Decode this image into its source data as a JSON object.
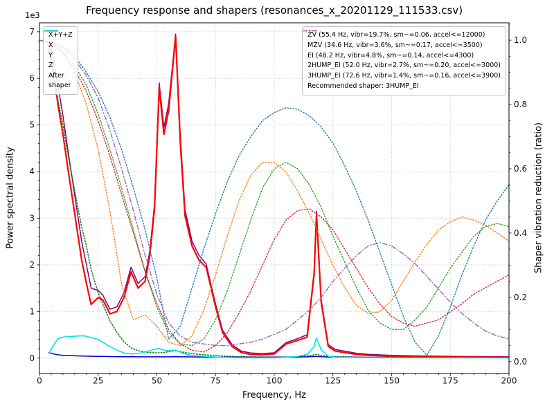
{
  "chart_data": {
    "type": "line",
    "title": "Frequency response and shapers (resonances_x_20201129_111533.csv)",
    "xlabel": "Frequency, Hz",
    "ylabel_left": "Power spectral density",
    "ylabel_right": "Shaper vibration reduction (ratio)",
    "grid": true,
    "legend_left_loc": "upper left",
    "legend_right_loc": "upper right",
    "legend_note": "Recommended shaper: 3HUMP_EI",
    "recommended_shaper": "3HUMP_EI",
    "x_axis": {
      "range": [
        0,
        200
      ],
      "major_ticks": [
        0,
        25,
        50,
        75,
        100,
        125,
        150,
        175,
        200
      ],
      "minor_step": 5
    },
    "left_axis": {
      "offset_text": "1e3",
      "range": [
        -330,
        7190
      ],
      "major_ticks": [
        0,
        1000,
        2000,
        3000,
        4000,
        5000,
        6000,
        7000
      ],
      "tick_labels": [
        "0",
        "1",
        "2",
        "3",
        "4",
        "5",
        "6",
        "7"
      ],
      "minor_step": 200
    },
    "right_axis": {
      "range": [
        -0.037,
        1.054
      ],
      "major_ticks": [
        0,
        0.2,
        0.4,
        0.6,
        0.8,
        1.0
      ],
      "tick_labels": [
        "0.0",
        "0.2",
        "0.4",
        "0.6",
        "0.8",
        "1.0"
      ],
      "minor_step": 0.05
    },
    "psd": {
      "x": [
        4,
        6,
        8,
        10,
        12,
        15,
        18,
        20,
        22,
        25,
        27,
        30,
        33,
        36,
        39,
        42,
        45,
        47,
        49,
        51,
        53,
        55,
        58,
        60,
        62,
        65,
        68,
        71,
        75,
        78,
        82,
        86,
        90,
        95,
        100,
        105,
        110,
        114,
        117,
        118,
        120,
        123,
        126,
        130,
        135,
        140,
        150,
        160,
        180,
        200
      ],
      "series": [
        {
          "key": "psd-xyz",
          "label": "X+Y+Z",
          "color": "#800080",
          "style": "solid",
          "width": 1.5,
          "values": [
            6950,
            6400,
            5800,
            5200,
            4500,
            3500,
            2500,
            2000,
            1500,
            1450,
            1350,
            1050,
            1100,
            1400,
            1950,
            1600,
            1750,
            2300,
            3300,
            5900,
            4950,
            5450,
            6950,
            4750,
            3180,
            2500,
            2200,
            2020,
            1160,
            600,
            290,
            150,
            110,
            95,
            115,
            330,
            420,
            500,
            1870,
            3150,
            1260,
            290,
            185,
            150,
            105,
            82,
            60,
            48,
            35,
            27
          ]
        },
        {
          "key": "psd-x",
          "label": "X",
          "color": "#ff0000",
          "style": "solid",
          "width": 2.2,
          "values": [
            6700,
            6100,
            5400,
            4800,
            4100,
            3100,
            2100,
            1600,
            1150,
            1300,
            1250,
            950,
            1000,
            1300,
            1850,
            1500,
            1650,
            2200,
            3200,
            5800,
            4800,
            5300,
            6900,
            4600,
            3050,
            2400,
            2100,
            1950,
            1100,
            550,
            250,
            120,
            80,
            70,
            90,
            300,
            380,
            450,
            1800,
            3080,
            1200,
            250,
            150,
            120,
            80,
            60,
            40,
            30,
            20,
            15
          ]
        },
        {
          "key": "psd-y",
          "label": "Y",
          "color": "#008000",
          "style": "dotted",
          "width": 1.5,
          "values": [
            6600,
            6100,
            5500,
            5000,
            4400,
            3600,
            2800,
            2400,
            1900,
            1400,
            1150,
            800,
            550,
            350,
            220,
            160,
            130,
            120,
            115,
            115,
            120,
            140,
            160,
            140,
            120,
            100,
            80,
            70,
            55,
            45,
            35,
            30,
            28,
            25,
            25,
            28,
            35,
            45,
            70,
            80,
            60,
            40,
            35,
            30,
            25,
            22,
            20,
            18,
            15,
            12
          ]
        },
        {
          "key": "psd-z",
          "label": "Z",
          "color": "#0000cd",
          "style": "solid",
          "width": 1.5,
          "values": [
            120,
            90,
            70,
            60,
            55,
            50,
            45,
            42,
            40,
            38,
            36,
            34,
            32,
            30,
            30,
            28,
            28,
            27,
            27,
            28,
            28,
            28,
            30,
            28,
            27,
            26,
            25,
            24,
            23,
            22,
            21,
            20,
            20,
            20,
            20,
            22,
            25,
            28,
            35,
            38,
            30,
            25,
            22,
            20,
            18,
            17,
            16,
            15,
            13,
            12
          ]
        },
        {
          "key": "psd-after-shaper",
          "label": "After\nshaper",
          "color": "#00e5e5",
          "style": "solid",
          "width": 1.6,
          "values": [
            100,
            280,
            420,
            450,
            460,
            470,
            480,
            470,
            440,
            400,
            340,
            250,
            170,
            110,
            90,
            100,
            130,
            160,
            190,
            210,
            170,
            160,
            170,
            130,
            90,
            60,
            45,
            38,
            25,
            18,
            12,
            8,
            6,
            6,
            8,
            20,
            40,
            80,
            250,
            430,
            180,
            40,
            20,
            15,
            12,
            10,
            8,
            7,
            6,
            5
          ]
        }
      ]
    },
    "shapers": {
      "x": [
        0,
        5,
        10,
        15,
        20,
        25,
        30,
        35,
        40,
        45,
        50,
        55,
        60,
        65,
        70,
        75,
        80,
        85,
        90,
        95,
        100,
        105,
        110,
        115,
        120,
        125,
        130,
        135,
        140,
        145,
        150,
        155,
        160,
        165,
        170,
        175,
        180,
        185,
        190,
        195,
        200
      ],
      "series": [
        {
          "key": "shaper-zv",
          "label": "ZV (55.4 Hz, vibr=19.7%, sm~=0.06, accel<=12000)",
          "color": "#1f77b4",
          "style": "dotted",
          "width": 1.4,
          "values": [
            1.0,
            0.995,
            0.98,
            0.95,
            0.9,
            0.84,
            0.76,
            0.66,
            0.54,
            0.41,
            0.26,
            0.07,
            0.11,
            0.23,
            0.35,
            0.46,
            0.56,
            0.64,
            0.7,
            0.75,
            0.775,
            0.79,
            0.785,
            0.765,
            0.73,
            0.68,
            0.61,
            0.53,
            0.44,
            0.34,
            0.24,
            0.14,
            0.06,
            0.02,
            0.08,
            0.17,
            0.27,
            0.36,
            0.44,
            0.5,
            0.55
          ]
        },
        {
          "key": "shaper-mzv",
          "label": "MZV (34.6 Hz, vibr=3.6%, sm~=0.17, accel<=3500)",
          "color": "#ff7f0e",
          "style": "dotted",
          "width": 1.4,
          "values": [
            1.0,
            0.99,
            0.96,
            0.9,
            0.8,
            0.66,
            0.47,
            0.24,
            0.13,
            0.145,
            0.11,
            0.06,
            0.05,
            0.08,
            0.16,
            0.27,
            0.39,
            0.5,
            0.58,
            0.62,
            0.62,
            0.59,
            0.53,
            0.46,
            0.38,
            0.3,
            0.23,
            0.175,
            0.15,
            0.155,
            0.19,
            0.25,
            0.31,
            0.365,
            0.41,
            0.435,
            0.45,
            0.44,
            0.425,
            0.4,
            0.375
          ]
        },
        {
          "key": "shaper-ei",
          "label": "EI (48.2 Hz, vibr=4.8%, sm~=0.14, accel<=4300)",
          "color": "#2ca02c",
          "style": "dotted",
          "width": 1.4,
          "values": [
            1.0,
            0.99,
            0.965,
            0.92,
            0.86,
            0.77,
            0.66,
            0.54,
            0.41,
            0.28,
            0.17,
            0.09,
            0.055,
            0.05,
            0.07,
            0.13,
            0.22,
            0.33,
            0.44,
            0.54,
            0.6,
            0.62,
            0.6,
            0.55,
            0.48,
            0.39,
            0.31,
            0.23,
            0.16,
            0.12,
            0.1,
            0.1,
            0.13,
            0.17,
            0.23,
            0.29,
            0.34,
            0.39,
            0.42,
            0.43,
            0.42
          ]
        },
        {
          "key": "shaper-2hump-ei",
          "label": "2HUMP_EI (52.0 Hz, vibr=2.7%, sm~=0.20, accel<=3000)",
          "color": "#d62728",
          "style": "dotted",
          "width": 1.4,
          "values": [
            1.0,
            0.99,
            0.96,
            0.91,
            0.84,
            0.75,
            0.64,
            0.52,
            0.4,
            0.28,
            0.18,
            0.1,
            0.055,
            0.035,
            0.03,
            0.05,
            0.09,
            0.15,
            0.22,
            0.3,
            0.38,
            0.44,
            0.47,
            0.475,
            0.45,
            0.41,
            0.35,
            0.29,
            0.23,
            0.18,
            0.14,
            0.12,
            0.11,
            0.12,
            0.13,
            0.155,
            0.18,
            0.21,
            0.23,
            0.25,
            0.27
          ]
        },
        {
          "key": "shaper-3hump-ei",
          "label": "3HUMP_EI (72.6 Hz, vibr=1.4%, sm~=0.16, accel<=3900)",
          "color": "#9467bd",
          "style": "dashdot",
          "width": 1.4,
          "values": [
            1.0,
            0.99,
            0.975,
            0.94,
            0.89,
            0.82,
            0.72,
            0.6,
            0.47,
            0.33,
            0.21,
            0.12,
            0.08,
            0.06,
            0.055,
            0.05,
            0.05,
            0.055,
            0.06,
            0.07,
            0.085,
            0.1,
            0.13,
            0.16,
            0.2,
            0.25,
            0.29,
            0.33,
            0.36,
            0.37,
            0.36,
            0.335,
            0.305,
            0.265,
            0.225,
            0.185,
            0.15,
            0.12,
            0.095,
            0.08,
            0.07
          ]
        }
      ]
    },
    "colors": {
      "grid": "#b3b3b3",
      "spine": "#000000",
      "background": "#ffffff"
    }
  }
}
